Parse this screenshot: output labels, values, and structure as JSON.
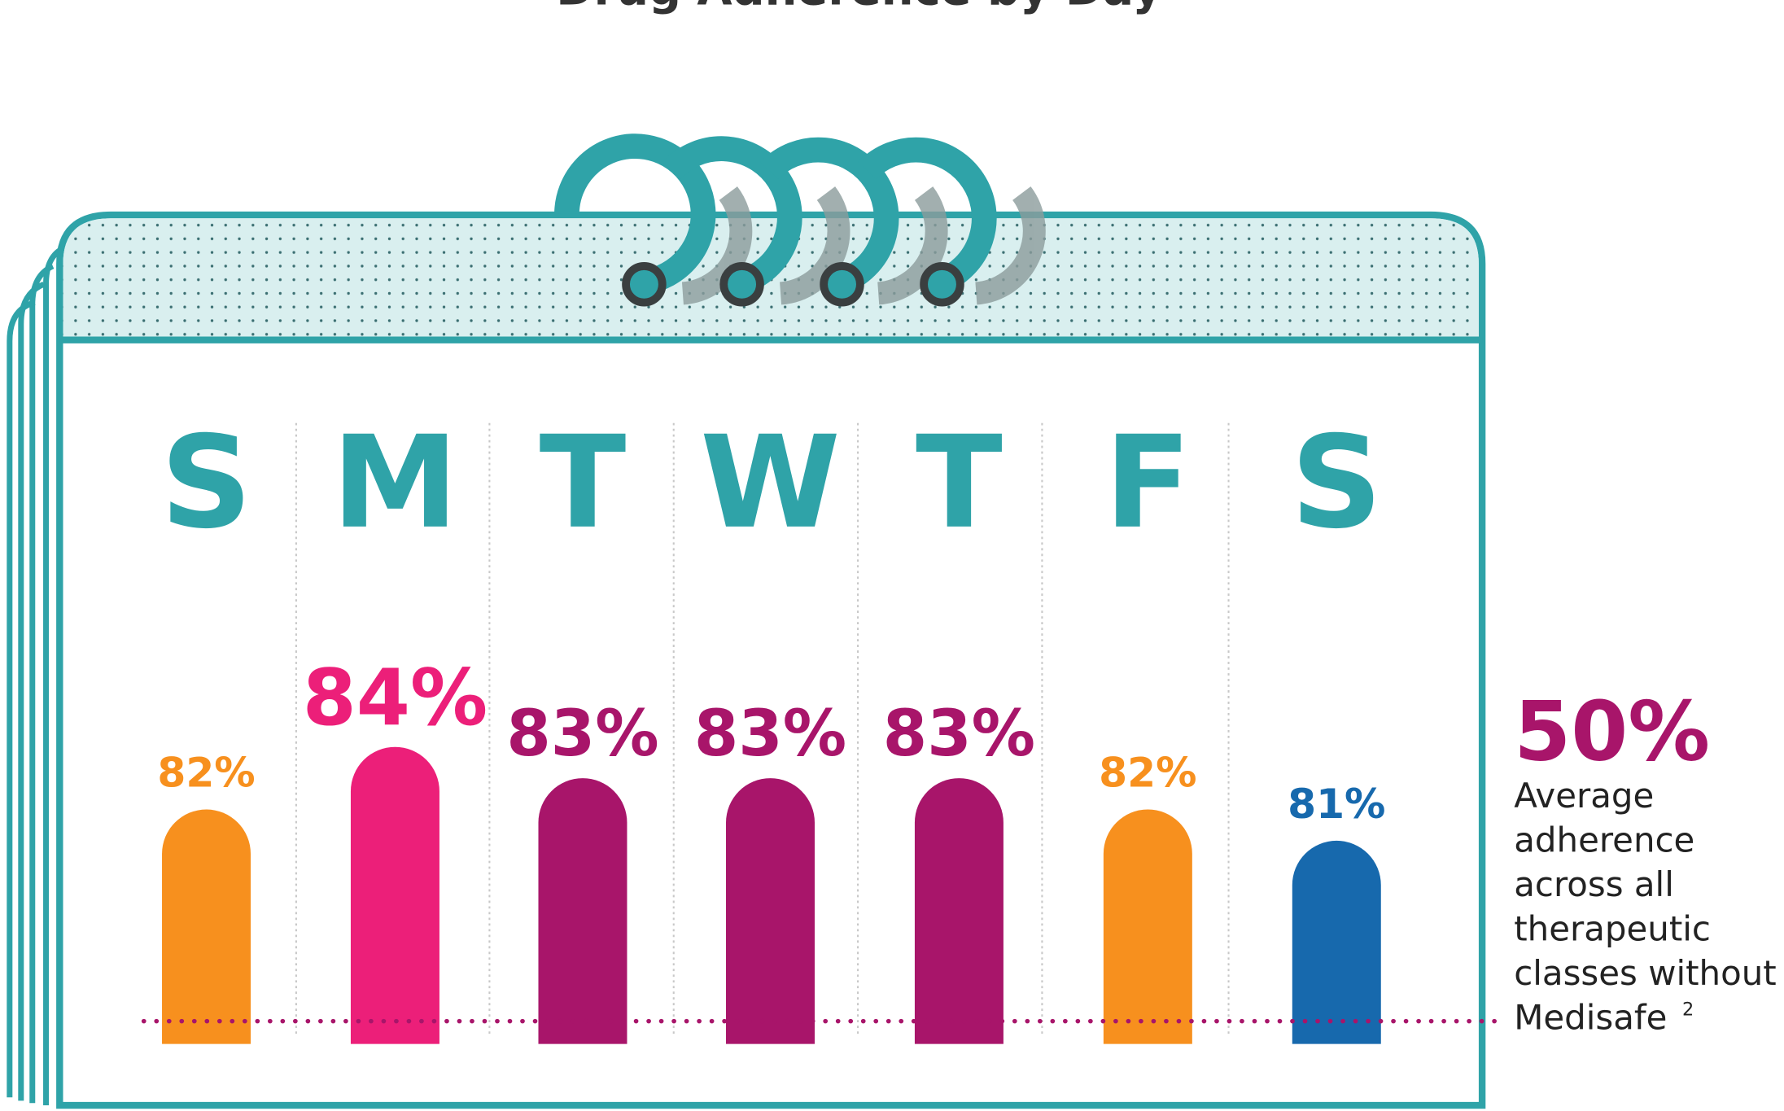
{
  "chart_data": {
    "type": "bar",
    "title": "Drug Adherence by Day",
    "categories": [
      "S",
      "M",
      "T",
      "W",
      "T",
      "F",
      "S"
    ],
    "values": [
      82,
      84,
      83,
      83,
      83,
      82,
      81
    ],
    "value_labels": [
      "82%",
      "84%",
      "83%",
      "83%",
      "83%",
      "82%",
      "81%"
    ],
    "colors": [
      "#f7901e",
      "#ec1f79",
      "#a8156a",
      "#a8156a",
      "#a8156a",
      "#f7901e",
      "#1769ad"
    ],
    "ylim": [
      74.5,
      100
    ],
    "reference": {
      "label": "50%",
      "text": [
        "Average",
        "adherence",
        "across all",
        "therapeutic",
        "classes without",
        "Medisafe"
      ],
      "footnote": "2"
    }
  }
}
